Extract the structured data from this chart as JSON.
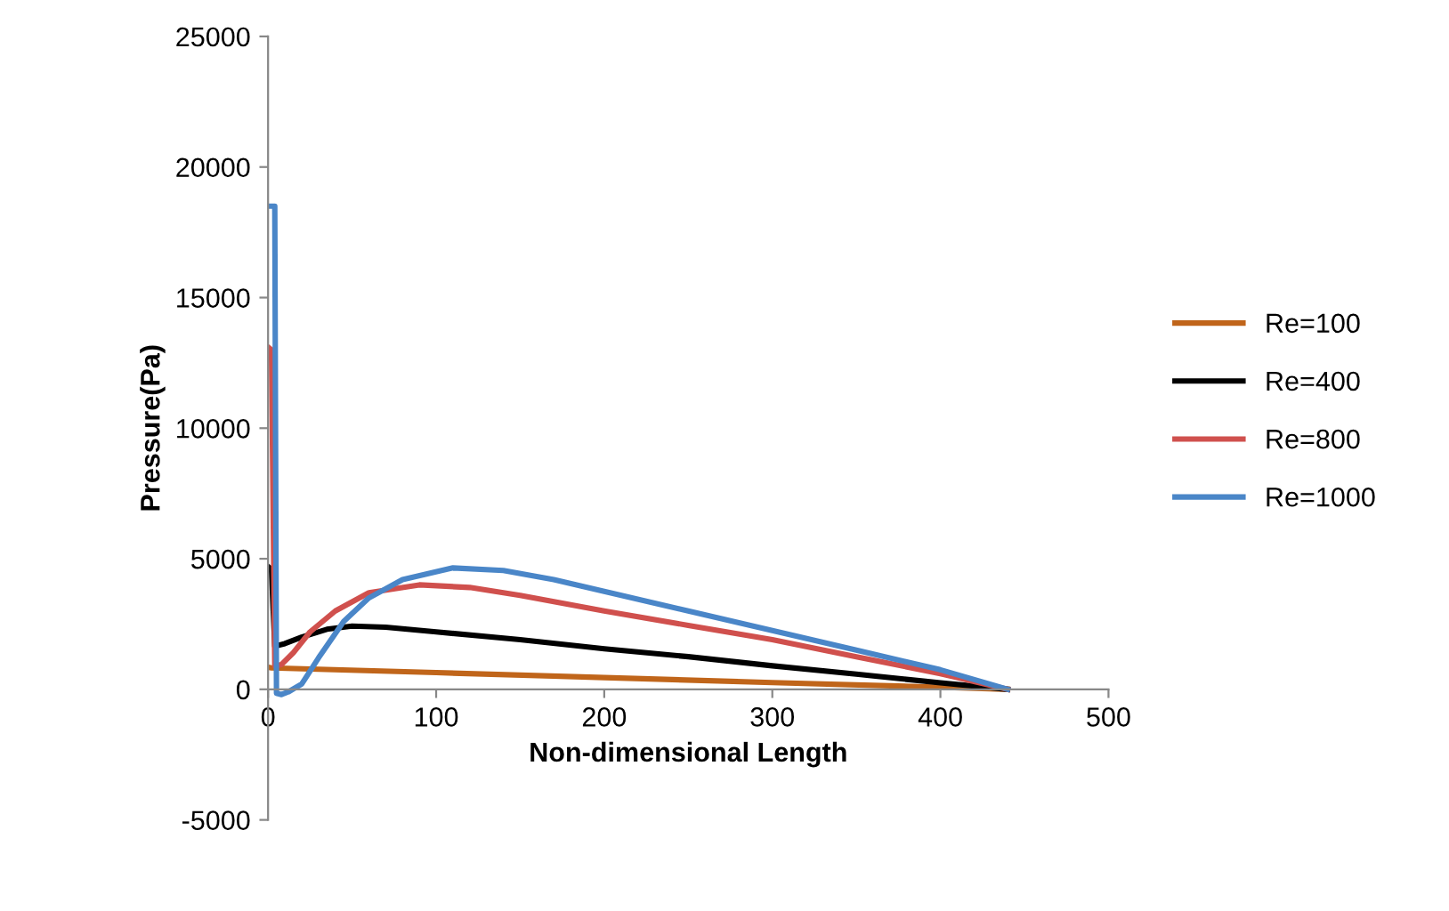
{
  "chart_data": {
    "type": "line",
    "xlabel": "Non-dimensional Length",
    "ylabel": "Pressure(Pa)",
    "xlim": [
      0,
      500
    ],
    "xticks": [
      0,
      100,
      200,
      300,
      400,
      500
    ],
    "ylim": [
      -5000,
      25000
    ],
    "yticks": [
      -5000,
      0,
      5000,
      10000,
      15000,
      20000,
      25000
    ],
    "grid": false,
    "legend": "right",
    "marker": "none",
    "line_style": "solid",
    "series": [
      {
        "name": "Re=100",
        "color": "#c0651a",
        "x": [
          0,
          2,
          100,
          200,
          300,
          400,
          440
        ],
        "values": [
          850,
          820,
          640,
          450,
          260,
          80,
          0
        ]
      },
      {
        "name": "Re=400",
        "color": "#000000",
        "x": [
          0,
          2,
          4,
          10,
          20,
          35,
          50,
          70,
          100,
          150,
          200,
          250,
          300,
          350,
          400,
          440
        ],
        "values": [
          4700,
          4600,
          1650,
          1750,
          2000,
          2300,
          2420,
          2380,
          2200,
          1900,
          1550,
          1250,
          900,
          580,
          250,
          0
        ]
      },
      {
        "name": "Re=800",
        "color": "#d0504d",
        "x": [
          0,
          2,
          4,
          8,
          15,
          25,
          40,
          60,
          90,
          120,
          150,
          200,
          250,
          300,
          350,
          400,
          440
        ],
        "values": [
          13100,
          13000,
          900,
          950,
          1400,
          2200,
          3000,
          3700,
          4000,
          3900,
          3600,
          3000,
          2450,
          1900,
          1250,
          600,
          0
        ]
      },
      {
        "name": "Re=1000",
        "color": "#4a86c8",
        "x": [
          0,
          4,
          5,
          8,
          12,
          20,
          30,
          45,
          60,
          80,
          110,
          140,
          170,
          200,
          250,
          300,
          350,
          400,
          440
        ],
        "values": [
          18500,
          18500,
          -150,
          -200,
          -100,
          200,
          1200,
          2600,
          3500,
          4200,
          4650,
          4550,
          4200,
          3750,
          3000,
          2250,
          1500,
          750,
          0
        ]
      }
    ]
  }
}
